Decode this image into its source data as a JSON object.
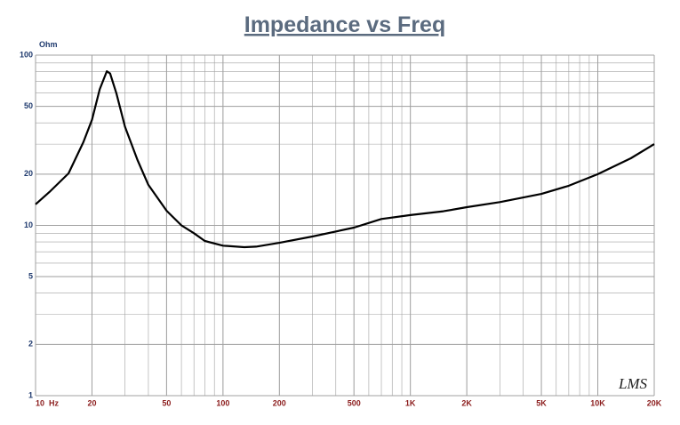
{
  "chart_data": {
    "type": "line",
    "title": "Impedance vs Freq",
    "y_label": "Ohm",
    "watermark": "LMS",
    "x": [
      10,
      12,
      15,
      18,
      20,
      22,
      24,
      25,
      27,
      30,
      35,
      40,
      50,
      60,
      70,
      80,
      100,
      130,
      150,
      200,
      300,
      500,
      700,
      1000,
      1500,
      2000,
      3000,
      5000,
      7000,
      10000,
      15000,
      20000
    ],
    "series": [
      {
        "name": "Impedance",
        "color": "#000000",
        "values": [
          13.3,
          15.9,
          20.2,
          30.8,
          41.7,
          63,
          80.4,
          78,
          59.5,
          38,
          24.2,
          17.3,
          12.2,
          10.0,
          9.0,
          8.1,
          7.6,
          7.45,
          7.5,
          7.9,
          8.6,
          9.7,
          10.9,
          11.5,
          12.1,
          12.8,
          13.7,
          15.3,
          17.1,
          20,
          24.8,
          30
        ]
      }
    ],
    "xlim": [
      10,
      20000
    ],
    "ylim": [
      1,
      100
    ],
    "xlog": true,
    "ylog": true,
    "xticks": [
      {
        "value": 10,
        "label": "10  Hz"
      },
      20,
      50,
      100,
      200,
      500,
      {
        "value": 1000,
        "label": "1K"
      },
      {
        "value": 2000,
        "label": "2K"
      },
      {
        "value": 5000,
        "label": "5K"
      },
      {
        "value": 10000,
        "label": "10K"
      },
      {
        "value": 20000,
        "label": "20K"
      }
    ],
    "yticks": [
      1,
      2,
      5,
      10,
      20,
      50,
      100
    ],
    "grid": true,
    "minor_grid": true,
    "title_color": "#5b6b7f",
    "xtick_color": "#8b1c1c",
    "ytick_color": "#1f3a6e",
    "grid_color": "#a0a0a0"
  }
}
